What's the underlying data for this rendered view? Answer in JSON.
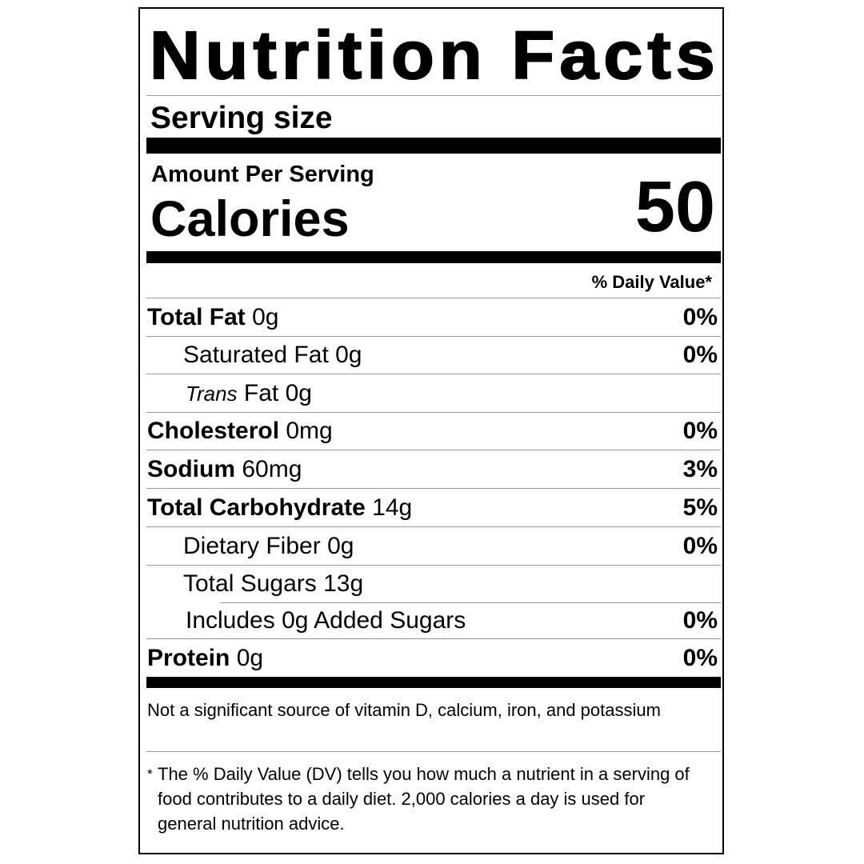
{
  "title": "Nutrition Facts",
  "serving_size_label": "Serving size",
  "amount_per_serving": "Amount Per Serving",
  "calories_label": "Calories",
  "calories_value": "50",
  "daily_value_header": "% Daily Value*",
  "rows": [
    {
      "name": "Total Fat",
      "amount": "0g",
      "dv": "0%",
      "bold": true,
      "indent": 0
    },
    {
      "name": "Saturated Fat",
      "amount": "0g",
      "dv": "0%",
      "bold": false,
      "indent": 1
    },
    {
      "name_italic": "Trans",
      "name": "Fat",
      "amount": "0g",
      "dv": "",
      "bold": false,
      "indent": 1
    },
    {
      "name": "Cholesterol",
      "amount": "0mg",
      "dv": "0%",
      "bold": true,
      "indent": 0
    },
    {
      "name": "Sodium",
      "amount": "60mg",
      "dv": "3%",
      "bold": true,
      "indent": 0
    },
    {
      "name": "Total Carbohydrate",
      "amount": "14g",
      "dv": "5%",
      "bold": true,
      "indent": 0
    },
    {
      "name": "Dietary Fiber",
      "amount": "0g",
      "dv": "0%",
      "bold": false,
      "indent": 1
    },
    {
      "name": "Total Sugars",
      "amount": "13g",
      "dv": "",
      "bold": false,
      "indent": 1
    },
    {
      "name": "Includes 0g Added Sugars",
      "amount": "",
      "dv": "0%",
      "bold": false,
      "indent": 2
    },
    {
      "name": "Protein",
      "amount": "0g",
      "dv": "0%",
      "bold": true,
      "indent": 0
    }
  ],
  "not_significant_note": "Not a significant source of vitamin D, calcium, iron, and potassium",
  "footnote_marker": "*",
  "footnote": "The % Daily Value (DV) tells you how much a nutrient in a serving of food contributes to a daily diet. 2,000 calories a day is used for general nutrition advice."
}
